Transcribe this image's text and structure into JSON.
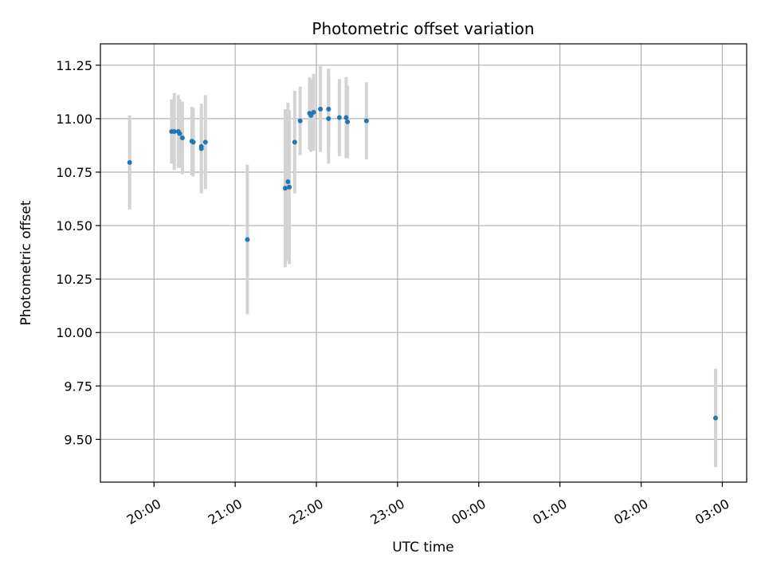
{
  "chart_data": {
    "type": "scatter",
    "title": "Photometric offset variation",
    "xlabel": "UTC time",
    "ylabel": "Photometric offset",
    "x_tick_labels": [
      "20:00",
      "21:00",
      "22:00",
      "23:00",
      "00:00",
      "01:00",
      "02:00",
      "03:00"
    ],
    "x_tick_hours": [
      20,
      21,
      22,
      23,
      24,
      25,
      26,
      27
    ],
    "xlim_hours": [
      19.34,
      27.3
    ],
    "y_ticks": [
      9.5,
      9.75,
      10.0,
      10.25,
      10.5,
      10.75,
      11.0,
      11.25
    ],
    "y_tick_labels": [
      "9.50",
      "9.75",
      "10.00",
      "10.25",
      "10.50",
      "10.75",
      "11.00",
      "11.25"
    ],
    "ylim": [
      9.3,
      11.35
    ],
    "grid": true,
    "x_is_time": true,
    "point_color": "#1f77b4",
    "errorbar_color": "#d3d3d3",
    "points": [
      {
        "t": "19:42",
        "y": 10.795,
        "err": 0.22
      },
      {
        "t": "20:13",
        "y": 10.94,
        "err": 0.15
      },
      {
        "t": "20:15",
        "y": 10.94,
        "err": 0.18
      },
      {
        "t": "20:18",
        "y": 10.94,
        "err": 0.17
      },
      {
        "t": "20:19",
        "y": 10.93,
        "err": 0.16
      },
      {
        "t": "20:21",
        "y": 10.91,
        "err": 0.17
      },
      {
        "t": "20:28",
        "y": 10.895,
        "err": 0.16
      },
      {
        "t": "20:29",
        "y": 10.89,
        "err": 0.16
      },
      {
        "t": "20:35",
        "y": 10.86,
        "err": 0.21
      },
      {
        "t": "20:35",
        "y": 10.87,
        "err": 0.18
      },
      {
        "t": "20:38",
        "y": 10.89,
        "err": 0.22
      },
      {
        "t": "21:09",
        "y": 10.435,
        "err": 0.35
      },
      {
        "t": "21:37",
        "y": 10.675,
        "err": 0.37
      },
      {
        "t": "21:39",
        "y": 10.705,
        "err": 0.37
      },
      {
        "t": "21:40",
        "y": 10.68,
        "err": 0.36
      },
      {
        "t": "21:44",
        "y": 10.89,
        "err": 0.24
      },
      {
        "t": "21:48",
        "y": 10.99,
        "err": 0.16
      },
      {
        "t": "21:55",
        "y": 11.025,
        "err": 0.17
      },
      {
        "t": "21:56",
        "y": 11.015,
        "err": 0.17
      },
      {
        "t": "21:58",
        "y": 11.03,
        "err": 0.18
      },
      {
        "t": "22:03",
        "y": 11.045,
        "err": 0.2
      },
      {
        "t": "22:09",
        "y": 11.045,
        "err": 0.19
      },
      {
        "t": "22:09",
        "y": 11.0,
        "err": 0.21
      },
      {
        "t": "22:17",
        "y": 11.005,
        "err": 0.18
      },
      {
        "t": "22:22",
        "y": 11.005,
        "err": 0.19
      },
      {
        "t": "22:23",
        "y": 10.985,
        "err": 0.17
      },
      {
        "t": "22:37",
        "y": 10.99,
        "err": 0.18
      },
      {
        "t": "02:55",
        "y": 9.6,
        "err": 0.23
      }
    ]
  }
}
